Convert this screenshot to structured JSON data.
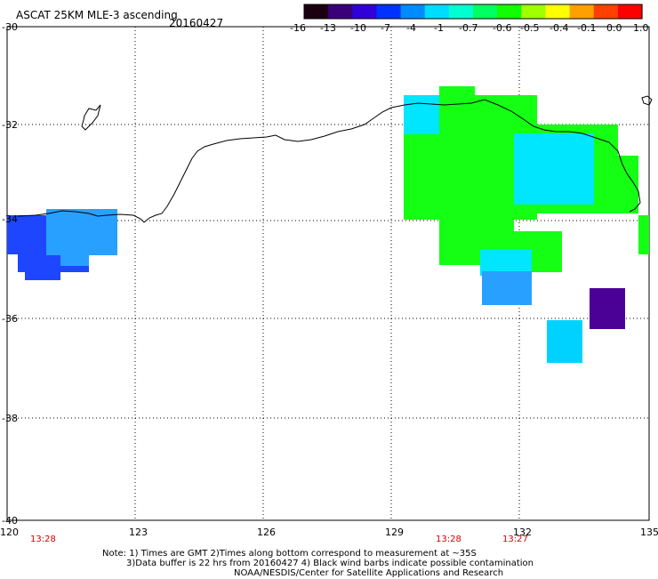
{
  "header": {
    "title": "ASCAT 25KM MLE-3 ascending",
    "date": "20160427"
  },
  "colorbar": {
    "labels": [
      "-16",
      "-13",
      "-10",
      "-7",
      "-4",
      "-1",
      "-0.7",
      "-0.6",
      "-0.5",
      "-0.4",
      "-0.1",
      "0.0",
      "1.0"
    ],
    "colors": [
      "#1a0010",
      "#3a007a",
      "#3000d8",
      "#0032ff",
      "#008cff",
      "#00dcff",
      "#00ffd0",
      "#00ff60",
      "#10ff00",
      "#a0ff00",
      "#ffff00",
      "#ffa000",
      "#ff4000",
      "#ff0000"
    ]
  },
  "axes": {
    "lat_labels": [
      "-30",
      "-32",
      "-34",
      "-36",
      "-38",
      "-40"
    ],
    "lon_labels": [
      "120",
      "123",
      "126",
      "129",
      "132",
      "135"
    ],
    "lat_range": [
      -40,
      -30
    ],
    "lon_range": [
      120,
      135
    ]
  },
  "pass_times": [
    "13:28",
    "13:28",
    "13:27"
  ],
  "notes": [
    "Note: 1) Times are GMT 2)Times along bottom correspond to measurement at ~35S",
    "3)Data buffer is 22 hrs from 20160427 4) Black wind barbs indicate possible contamination",
    "NOAA/NESDIS/Center for Satellite Applications and Research"
  ],
  "data_regions": [
    {
      "name": "swath-west-blue",
      "value": "-7",
      "color": "#1e46ff"
    },
    {
      "name": "swath-west-cyan",
      "value": "-4",
      "color": "#28a0ff"
    },
    {
      "name": "swath-east-green",
      "value": "-0.5",
      "color": "#14ff14"
    },
    {
      "name": "swath-east-cyan",
      "value": "-1",
      "color": "#00e6ff"
    },
    {
      "name": "patch-violet",
      "value": "-13",
      "color": "#4b0096"
    },
    {
      "name": "patch-cyan",
      "value": "-1",
      "color": "#00d2ff"
    }
  ]
}
